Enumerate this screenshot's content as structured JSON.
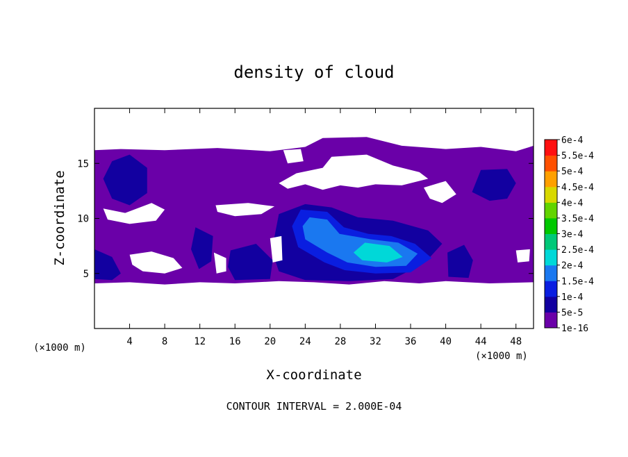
{
  "chart_data": {
    "type": "heatmap",
    "title": "density of cloud",
    "xlabel": "X-coordinate",
    "ylabel": "Z-coordinate",
    "x_unit_left": "(×1000 m)",
    "x_unit_right": "(×1000 m)",
    "xlim": [
      0,
      50
    ],
    "ylim": [
      0,
      20
    ],
    "x_ticks": [
      4,
      8,
      12,
      16,
      20,
      24,
      28,
      32,
      36,
      40,
      44,
      48
    ],
    "x_tick_labels": [
      "4",
      "8",
      "12",
      "16",
      "20",
      "24",
      "28",
      "32",
      "36",
      "40",
      "44",
      "48"
    ],
    "y_ticks": [
      5,
      10,
      15
    ],
    "y_tick_labels": [
      "5",
      "10",
      "15"
    ],
    "colorbar": {
      "levels": [
        "1e-16",
        "5e-5",
        "1e-4",
        "1.5e-4",
        "2e-4",
        "2.5e-4",
        "3e-4",
        "3.5e-4",
        "4e-4",
        "4.5e-4",
        "5e-4",
        "5.5e-4",
        "6e-4"
      ],
      "colors": [
        "#6a00a8",
        "#1200a0",
        "#0a1ee0",
        "#1a78f0",
        "#00d8d8",
        "#00c878",
        "#00c800",
        "#62d400",
        "#d8d800",
        "#ffa000",
        "#ff5000",
        "#ff1010",
        "#ff9090"
      ]
    },
    "regions": [
      {
        "level": 0,
        "points": [
          [
            0,
            16.2
          ],
          [
            3,
            16.3
          ],
          [
            8,
            16.2
          ],
          [
            14,
            16.4
          ],
          [
            20,
            16.1
          ],
          [
            24,
            16.5
          ],
          [
            26,
            17.3
          ],
          [
            31,
            17.4
          ],
          [
            35,
            16.6
          ],
          [
            40,
            16.3
          ],
          [
            44,
            16.5
          ],
          [
            48,
            16.1
          ],
          [
            50,
            16.6
          ],
          [
            50,
            4.2
          ],
          [
            45,
            4.1
          ],
          [
            40,
            4.3
          ],
          [
            37,
            4.1
          ],
          [
            33,
            4.3
          ],
          [
            29,
            4.0
          ],
          [
            25,
            4.2
          ],
          [
            21,
            4.3
          ],
          [
            16,
            4.1
          ],
          [
            12,
            4.2
          ],
          [
            8,
            4.0
          ],
          [
            4,
            4.2
          ],
          [
            0,
            4.1
          ]
        ]
      },
      {
        "level": 1,
        "points": [
          [
            2,
            15.2
          ],
          [
            4,
            15.8
          ],
          [
            6,
            14.6
          ],
          [
            6,
            12.3
          ],
          [
            4,
            11.2
          ],
          [
            2,
            11.8
          ],
          [
            1,
            13.6
          ]
        ]
      },
      {
        "level": 1,
        "points": [
          [
            44,
            14.4
          ],
          [
            47,
            14.5
          ],
          [
            48,
            13.2
          ],
          [
            47,
            11.8
          ],
          [
            45,
            11.6
          ],
          [
            43,
            12.4
          ]
        ]
      },
      {
        "level": 1,
        "points": [
          [
            0,
            7.2
          ],
          [
            2,
            6.5
          ],
          [
            3,
            5.0
          ],
          [
            2,
            4.4
          ],
          [
            0,
            4.5
          ]
        ]
      },
      {
        "level": 1,
        "points": [
          [
            15.5,
            7.1
          ],
          [
            18.4,
            7.7
          ],
          [
            20.3,
            6.2
          ],
          [
            20,
            4.5
          ],
          [
            16,
            4.4
          ],
          [
            15.2,
            5.6
          ]
        ]
      },
      {
        "level": 1,
        "points": [
          [
            21,
            10.4
          ],
          [
            24,
            11.3
          ],
          [
            27,
            11.0
          ],
          [
            30,
            10.1
          ],
          [
            34,
            9.8
          ],
          [
            38,
            8.9
          ],
          [
            39.6,
            7.7
          ],
          [
            38,
            6.3
          ],
          [
            36,
            5.3
          ],
          [
            34,
            4.5
          ],
          [
            29,
            4.3
          ],
          [
            24,
            4.4
          ],
          [
            21,
            5.2
          ],
          [
            20.2,
            7.1
          ]
        ]
      },
      {
        "level": 1,
        "points": [
          [
            40.2,
            6.9
          ],
          [
            42.1,
            7.6
          ],
          [
            43.1,
            6.2
          ],
          [
            42.6,
            4.6
          ],
          [
            40.3,
            4.7
          ]
        ]
      },
      {
        "level": 1,
        "points": [
          [
            11.5,
            9.2
          ],
          [
            13.5,
            8.4
          ],
          [
            13.3,
            6.1
          ],
          [
            11.9,
            5.4
          ],
          [
            11,
            7.2
          ]
        ]
      },
      {
        "level": 2,
        "points": [
          [
            23.5,
            10.8
          ],
          [
            26.5,
            10.6
          ],
          [
            28.4,
            9.2
          ],
          [
            31.2,
            8.6
          ],
          [
            33.8,
            8.4
          ],
          [
            36.5,
            7.7
          ],
          [
            38.4,
            6.4
          ],
          [
            36,
            5.1
          ],
          [
            32,
            5.0
          ],
          [
            28.5,
            5.3
          ],
          [
            26.2,
            6.0
          ],
          [
            23.2,
            7.4
          ],
          [
            22.5,
            9.3
          ]
        ]
      },
      {
        "level": 3,
        "points": [
          [
            24.5,
            10.1
          ],
          [
            26.5,
            9.9
          ],
          [
            27.9,
            8.6
          ],
          [
            31.5,
            8.1
          ],
          [
            34.6,
            7.8
          ],
          [
            36.8,
            6.8
          ],
          [
            35.5,
            5.7
          ],
          [
            32,
            5.6
          ],
          [
            28.8,
            6.0
          ],
          [
            26.5,
            6.9
          ],
          [
            24,
            8.1
          ],
          [
            23.7,
            9.3
          ]
        ]
      },
      {
        "level": 4,
        "points": [
          [
            30.8,
            7.8
          ],
          [
            33.6,
            7.5
          ],
          [
            35.1,
            6.5
          ],
          [
            33.3,
            6.0
          ],
          [
            30.5,
            6.2
          ],
          [
            29.5,
            6.9
          ]
        ]
      }
    ],
    "holes": [
      {
        "points": [
          [
            27,
            15.6
          ],
          [
            31,
            15.8
          ],
          [
            34,
            14.8
          ],
          [
            37,
            14.2
          ],
          [
            38,
            13.6
          ],
          [
            35,
            13.0
          ],
          [
            32,
            13.1
          ],
          [
            30,
            12.8
          ],
          [
            28,
            13.0
          ],
          [
            26,
            12.6
          ],
          [
            24,
            13.1
          ],
          [
            22,
            12.7
          ],
          [
            21,
            13.2
          ],
          [
            23,
            14.1
          ],
          [
            26,
            14.6
          ]
        ]
      },
      {
        "points": [
          [
            37.5,
            12.8
          ],
          [
            40,
            13.4
          ],
          [
            41.2,
            12.2
          ],
          [
            39.6,
            11.4
          ],
          [
            38.2,
            11.8
          ]
        ]
      },
      {
        "points": [
          [
            1,
            10.9
          ],
          [
            3.5,
            10.5
          ],
          [
            6.5,
            11.4
          ],
          [
            8,
            10.8
          ],
          [
            7,
            9.8
          ],
          [
            4,
            9.5
          ],
          [
            1.5,
            9.9
          ]
        ]
      },
      {
        "points": [
          [
            13.8,
            11.2
          ],
          [
            17.5,
            11.4
          ],
          [
            20.5,
            11.1
          ],
          [
            19,
            10.4
          ],
          [
            16,
            10.2
          ],
          [
            14,
            10.6
          ]
        ]
      },
      {
        "points": [
          [
            4,
            6.7
          ],
          [
            6.5,
            7.0
          ],
          [
            9,
            6.4
          ],
          [
            10,
            5.5
          ],
          [
            8,
            5.0
          ],
          [
            5.5,
            5.2
          ],
          [
            4.3,
            5.8
          ]
        ]
      },
      {
        "points": [
          [
            13.6,
            6.9
          ],
          [
            15,
            6.4
          ],
          [
            15,
            5.2
          ],
          [
            13.9,
            5.0
          ]
        ]
      },
      {
        "points": [
          [
            20,
            8.2
          ],
          [
            21.3,
            8.4
          ],
          [
            21.4,
            6.2
          ],
          [
            20.3,
            6.0
          ]
        ]
      },
      {
        "points": [
          [
            48,
            7.1
          ],
          [
            49.6,
            7.2
          ],
          [
            49.5,
            6.1
          ],
          [
            48.2,
            6.0
          ]
        ]
      },
      {
        "points": [
          [
            21.5,
            16.2
          ],
          [
            23.5,
            16.3
          ],
          [
            23.8,
            15.2
          ],
          [
            22,
            15.0
          ]
        ]
      }
    ]
  },
  "footer_text": "CONTOUR INTERVAL = 2.000E-04"
}
